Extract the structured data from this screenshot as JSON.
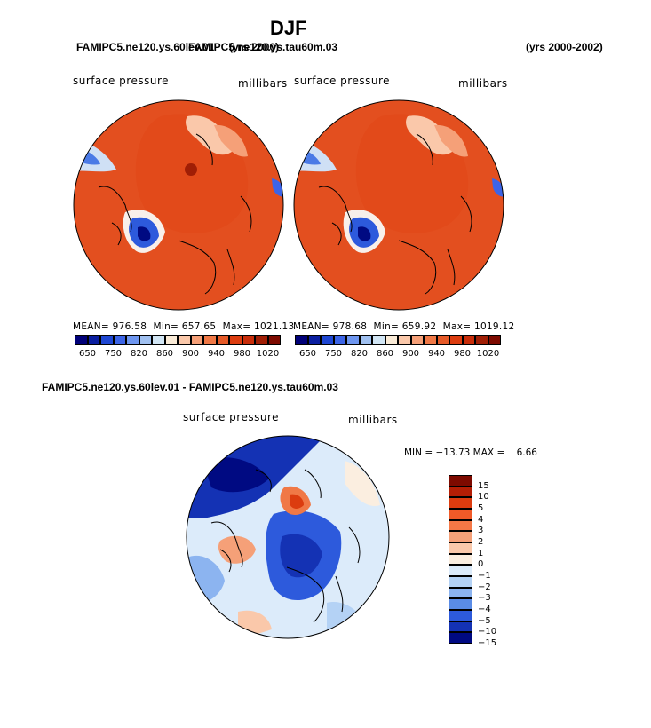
{
  "title": "DJF",
  "panel_left": {
    "case": "FAMIPC5.ne120.ys.60lev.01",
    "years": "(yrs 2000)",
    "variable": "surface pressure",
    "units": "millibars",
    "stats": {
      "mean_label": "MEAN=",
      "mean": "976.58",
      "min_label": "Min=",
      "min": "657.65",
      "max_label": "Max=",
      "max": "1021.13"
    }
  },
  "panel_right": {
    "case": "FAMIPC5.ne120.ys.tau60m.03",
    "years": "(yrs 2000-2002)",
    "variable": "surface pressure",
    "units": "millibars",
    "stats": {
      "mean_label": "MEAN=",
      "mean": "978.68",
      "min_label": "Min=",
      "min": "659.92",
      "max_label": "Max=",
      "max": "1019.12"
    }
  },
  "colorbar_abs": {
    "labels": [
      "650",
      "750",
      "820",
      "860",
      "900",
      "940",
      "980",
      "1020"
    ],
    "colors": [
      "#000078",
      "#0a1ea0",
      "#1e46d2",
      "#3c64e6",
      "#6e96f0",
      "#a0c0f0",
      "#d2e6f5",
      "#faebd7",
      "#fac8aa",
      "#f5a078",
      "#f07846",
      "#e65a28",
      "#dc3c0f",
      "#c82d0a",
      "#a01e05",
      "#7d0a00"
    ]
  },
  "panel_diff": {
    "title": "FAMIPC5.ne120.ys.60lev.01 - FAMIPC5.ne120.ys.tau60m.03",
    "variable": "surface pressure",
    "units": "millibars",
    "minmax_label": "MIN = −13.73 MAX =    6.66"
  },
  "colorbar_diff": {
    "labels": [
      "15",
      "10",
      "5",
      "4",
      "3",
      "2",
      "1",
      "0",
      "−1",
      "−2",
      "−3",
      "−4",
      "−5",
      "−10",
      "−15"
    ],
    "colors": [
      "#7d0a00",
      "#b41e05",
      "#dc3c0f",
      "#f05a28",
      "#f57846",
      "#f5a078",
      "#fac8aa",
      "#fbeee0",
      "#dcebfa",
      "#b4d2f5",
      "#8cb4f0",
      "#5a8ce6",
      "#2d5adc",
      "#1432b4",
      "#000a82"
    ]
  }
}
